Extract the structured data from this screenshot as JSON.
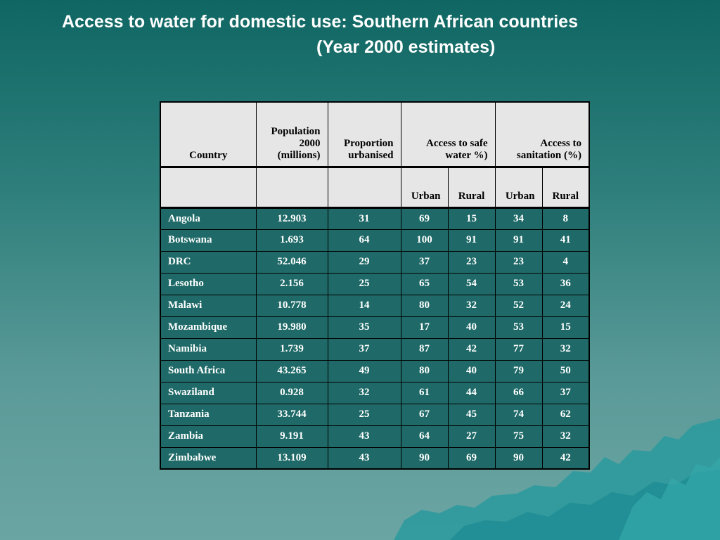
{
  "slide": {
    "title_line1": "Access to water for domestic use: Southern African countries",
    "title_line2": "(Year 2000 estimates)"
  },
  "table": {
    "headers": {
      "country": "Country",
      "population": "Population 2000 (millions)",
      "proportion": "Proportion urbanised",
      "safe_water": "Access to safe water %)",
      "sanitation": "Access to sanitation (%)"
    },
    "subheaders": {
      "urban1": "Urban",
      "rural1": "Rural",
      "urban2": "Urban",
      "rural2": "Rural"
    },
    "rows": [
      {
        "country": "Angola",
        "population": "12.903",
        "proportion": "31",
        "water_urban": "69",
        "water_rural": "15",
        "san_urban": "34",
        "san_rural": "8"
      },
      {
        "country": "Botswana",
        "population": "1.693",
        "proportion": "64",
        "water_urban": "100",
        "water_rural": "91",
        "san_urban": "91",
        "san_rural": "41"
      },
      {
        "country": "DRC",
        "population": "52.046",
        "proportion": "29",
        "water_urban": "37",
        "water_rural": "23",
        "san_urban": "23",
        "san_rural": "4"
      },
      {
        "country": "Lesotho",
        "population": "2.156",
        "proportion": "25",
        "water_urban": "65",
        "water_rural": "54",
        "san_urban": "53",
        "san_rural": "36"
      },
      {
        "country": "Malawi",
        "population": "10.778",
        "proportion": "14",
        "water_urban": "80",
        "water_rural": "32",
        "san_urban": "52",
        "san_rural": "24"
      },
      {
        "country": "Mozambique",
        "population": "19.980",
        "proportion": "35",
        "water_urban": "17",
        "water_rural": "40",
        "san_urban": "53",
        "san_rural": "15"
      },
      {
        "country": "Namibia",
        "population": "1.739",
        "proportion": "37",
        "water_urban": "87",
        "water_rural": "42",
        "san_urban": "77",
        "san_rural": "32"
      },
      {
        "country": "South Africa",
        "population": "43.265",
        "proportion": "49",
        "water_urban": "80",
        "water_rural": "40",
        "san_urban": "79",
        "san_rural": "50"
      },
      {
        "country": "Swaziland",
        "population": "0.928",
        "proportion": "32",
        "water_urban": "61",
        "water_rural": "44",
        "san_urban": "66",
        "san_rural": "37"
      },
      {
        "country": "Tanzania",
        "population": "33.744",
        "proportion": "25",
        "water_urban": "67",
        "water_rural": "45",
        "san_urban": "74",
        "san_rural": "62"
      },
      {
        "country": "Zambia",
        "population": "9.191",
        "proportion": "43",
        "water_urban": "64",
        "water_rural": "27",
        "san_urban": "75",
        "san_rural": "32"
      },
      {
        "country": "Zimbabwe",
        "population": "13.109",
        "proportion": "43",
        "water_urban": "90",
        "water_rural": "69",
        "san_urban": "90",
        "san_rural": "42"
      }
    ]
  }
}
